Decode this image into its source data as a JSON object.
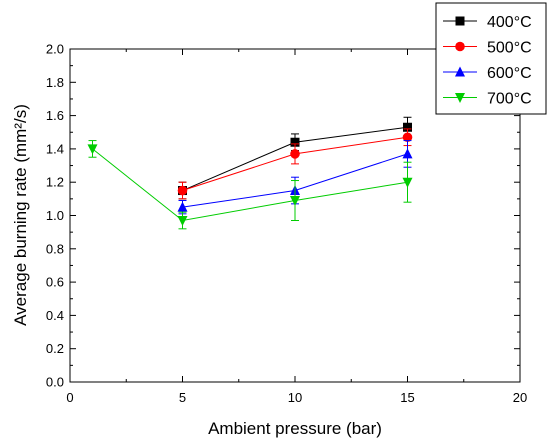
{
  "chart_data": {
    "type": "line",
    "xlabel": "Ambient pressure (bar)",
    "ylabel": "Average burning rate (mm²/s)",
    "xlim": [
      0,
      20
    ],
    "ylim": [
      0.0,
      2.0
    ],
    "x_ticks": [
      "0",
      "5",
      "10",
      "15",
      "20"
    ],
    "y_ticks": [
      "0.0",
      "0.2",
      "0.4",
      "0.6",
      "0.8",
      "1.0",
      "1.2",
      "1.4",
      "1.6",
      "1.8",
      "2.0"
    ],
    "grid": false,
    "legend_position": "top-right",
    "series": [
      {
        "name": "400°C",
        "color": "#000000",
        "marker": "square",
        "x": [
          5,
          10,
          15
        ],
        "y": [
          1.15,
          1.44,
          1.53
        ],
        "err": [
          0.05,
          0.05,
          0.06
        ]
      },
      {
        "name": "500°C",
        "color": "#ff0000",
        "marker": "circle",
        "x": [
          5,
          10,
          15
        ],
        "y": [
          1.15,
          1.37,
          1.47
        ],
        "err": [
          0.05,
          0.06,
          0.05
        ]
      },
      {
        "name": "600°C",
        "color": "#0000ff",
        "marker": "triangle-up",
        "x": [
          5,
          10,
          15
        ],
        "y": [
          1.05,
          1.15,
          1.37
        ],
        "err": [
          0.04,
          0.08,
          0.08
        ]
      },
      {
        "name": "700°C",
        "color": "#00cc00",
        "marker": "triangle-down",
        "x": [
          1,
          5,
          10,
          15
        ],
        "y": [
          1.4,
          0.97,
          1.09,
          1.2
        ],
        "err": [
          0.05,
          0.05,
          0.12,
          0.12
        ]
      }
    ]
  }
}
